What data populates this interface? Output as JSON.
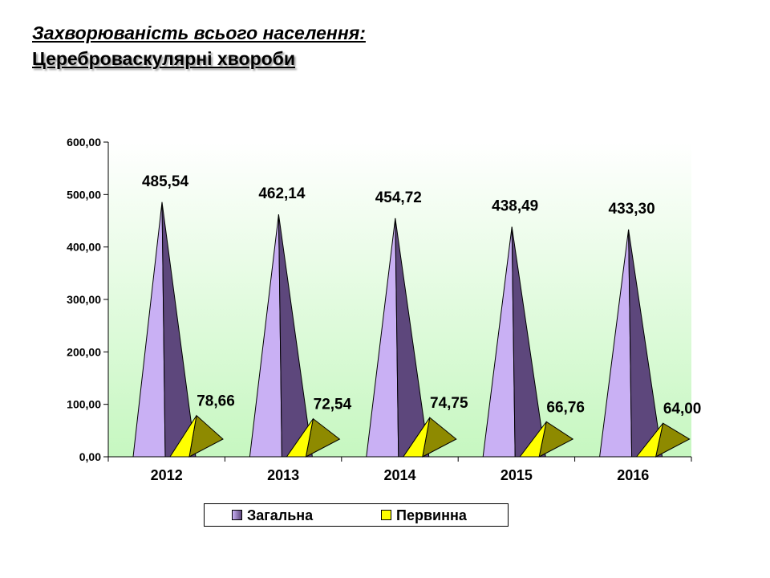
{
  "title": "Захворюваність всього населення:",
  "subtitle": "Цереброваскулярні хвороби",
  "colors": {
    "general_light": "#c9b0f4",
    "general_dark": "#5d477c",
    "primary_light": "#ffff00",
    "primary_dark": "#8e8a00",
    "plot_gradient_top": "#ffffff",
    "plot_gradient_bottom": "#c6f7c0"
  },
  "chart_data": {
    "type": "bar",
    "shape": "3d-pyramid",
    "categories": [
      "2012",
      "2013",
      "2014",
      "2015",
      "2016"
    ],
    "ylim": [
      0,
      600
    ],
    "yticks": [
      "0,00",
      "100,00",
      "200,00",
      "300,00",
      "400,00",
      "500,00",
      "600,00"
    ],
    "series": [
      {
        "name": "Загальна",
        "values": [
          485.54,
          462.14,
          454.72,
          438.49,
          433.3
        ],
        "labels": [
          "485,54",
          "462,14",
          "454,72",
          "438,49",
          "433,30"
        ]
      },
      {
        "name": "Первинна",
        "values": [
          78.66,
          72.54,
          74.75,
          66.76,
          64.0
        ],
        "labels": [
          "78,66",
          "72,54",
          "74,75",
          "66,76",
          "64,00"
        ]
      }
    ],
    "legend_position": "bottom",
    "grid": false
  }
}
